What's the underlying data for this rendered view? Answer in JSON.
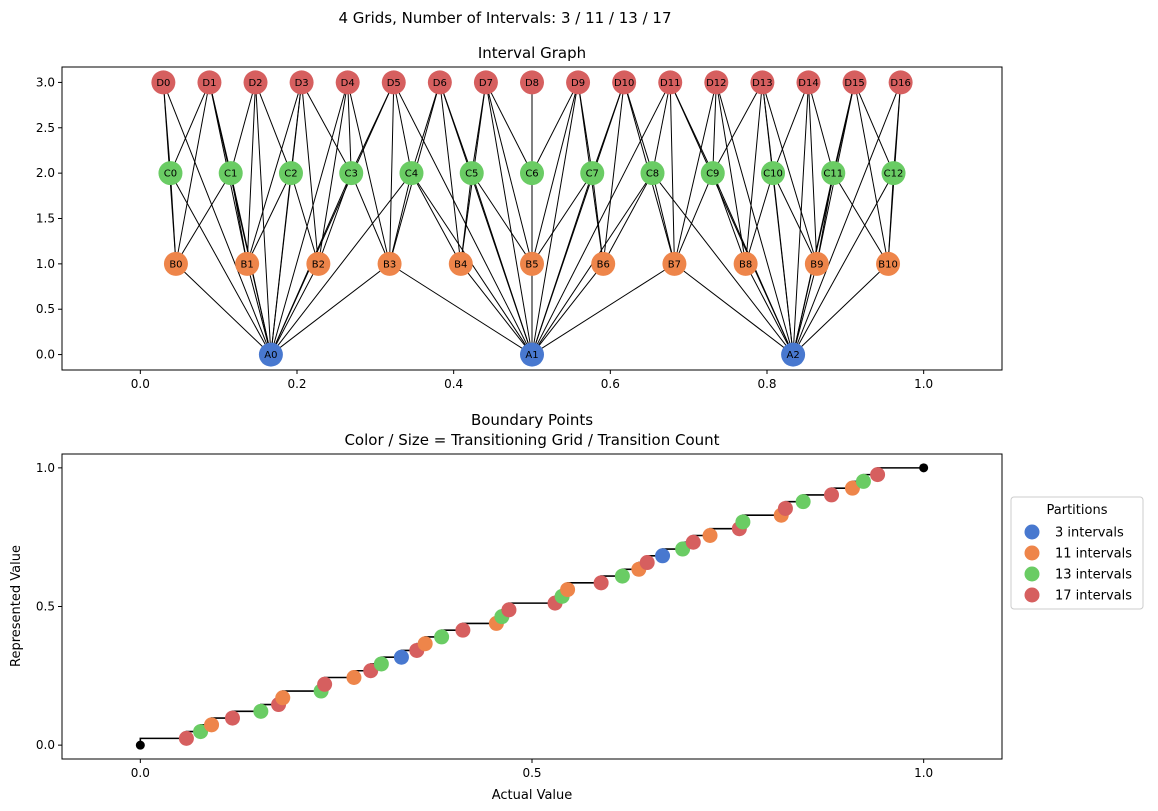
{
  "suptitle": "4 Grids, Number of Intervals: 3 / 11 / 13 / 17",
  "colors": {
    "A": "#4878cf",
    "B": "#ee854a",
    "C": "#6acc64",
    "D": "#d65f5f",
    "step": "#000000"
  },
  "chart_data": [
    {
      "type": "graph",
      "title": "Interval Graph",
      "xlim": [
        -0.1,
        1.1
      ],
      "ylim": [
        -0.17,
        3.17
      ],
      "xticks": [
        "0.0",
        "0.2",
        "0.4",
        "0.6",
        "0.8",
        "1.0"
      ],
      "xtick_values": [
        0,
        0.2,
        0.4,
        0.6,
        0.8,
        1.0
      ],
      "yticks": [
        "0.0",
        "0.5",
        "1.0",
        "1.5",
        "2.0",
        "2.5",
        "3.0"
      ],
      "ytick_values": [
        0,
        0.5,
        1,
        1.5,
        2,
        2.5,
        3
      ],
      "levels": [
        {
          "prefix": "A",
          "y": 0,
          "n": 3
        },
        {
          "prefix": "B",
          "y": 1,
          "n": 11
        },
        {
          "prefix": "C",
          "y": 2,
          "n": 13
        },
        {
          "prefix": "D",
          "y": 3,
          "n": 17
        }
      ],
      "edge_rule": "nodes in adjacent rows are connected when their intervals overlap; each row also connects to row A"
    },
    {
      "type": "step+scatter",
      "title": "Boundary Points\nColor / Size = Transitioning Grid / Transition Count",
      "title_lines": [
        "Boundary Points",
        "Color / Size = Transitioning Grid / Transition Count"
      ],
      "xlabel": "Actual Value",
      "ylabel": "Represented Value",
      "xlim": [
        -0.1,
        1.1
      ],
      "ylim": [
        -0.05,
        1.05
      ],
      "xticks": [
        "0.0",
        "0.5",
        "1.0"
      ],
      "xtick_values": [
        0,
        0.5,
        1.0
      ],
      "yticks": [
        "0.0",
        "0.5",
        "1.0"
      ],
      "ytick_values": [
        0,
        0.5,
        1.0
      ],
      "endpoints": [
        [
          0,
          0
        ],
        [
          1,
          1
        ]
      ],
      "legend": {
        "title": "Partitions",
        "placement": "center-right outside",
        "entries": [
          "3 intervals",
          "11 intervals",
          "13 intervals",
          "17 intervals"
        ]
      },
      "series": [
        {
          "name": "3 intervals",
          "n": 3
        },
        {
          "name": "11 intervals",
          "n": 11
        },
        {
          "name": "13 intervals",
          "n": 13
        },
        {
          "name": "17 intervals",
          "n": 17
        }
      ]
    }
  ]
}
